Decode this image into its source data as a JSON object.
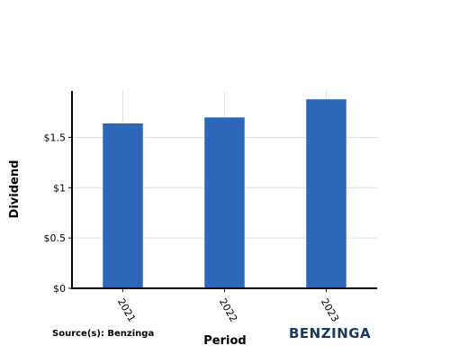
{
  "chart_data": {
    "type": "bar",
    "categories": [
      "2021",
      "2022",
      "2023"
    ],
    "values": [
      1.64,
      1.7,
      1.88
    ],
    "title": "",
    "xlabel": "Period",
    "ylabel": "Dividend",
    "ylim": [
      0,
      1.96
    ],
    "yticks": [
      0,
      0.5,
      1,
      1.5
    ],
    "ytick_labels": [
      "$0",
      "$0.5",
      "$1",
      "$1.5"
    ],
    "grid": true,
    "colors": {
      "bar": "#2f67b8",
      "grid": "#dddddd",
      "axis": "#000000"
    }
  },
  "source": "Source(s): Benzinga",
  "logo": "BENZINGA"
}
